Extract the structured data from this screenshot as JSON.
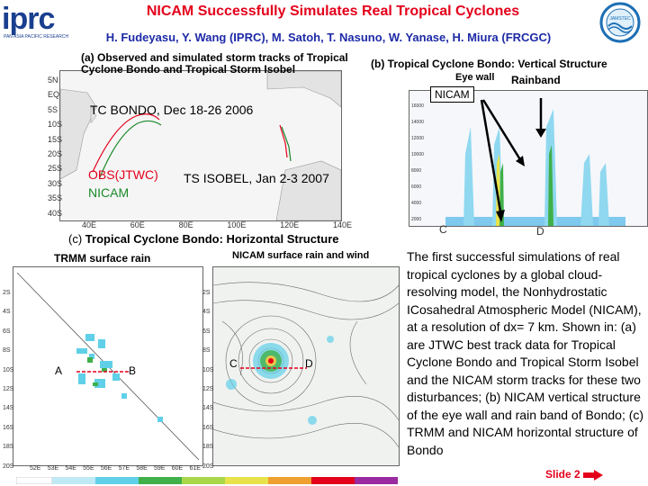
{
  "header": {
    "logo_text": "iprc",
    "logo_subtitle": "PAN ASIA PACIFIC RESEARCH",
    "title": "NICAM Successfully Simulates Real Tropical Cyclones",
    "authors": "H. Fudeyasu, Y. Wang (IPRC), M. Satoh, T. Nasuno,  W. Yanase, H. Miura (FRCGC)",
    "seal_text": "JAMSTEC"
  },
  "panel_a": {
    "caption": "(a) Observed and simulated storm tracks of Tropical Cyclone Bondo and Tropical Storm Isobel",
    "label_bondo": "TC BONDO, Dec 18-26 2006",
    "label_isobel": "TS ISOBEL, Jan 2-3 2007",
    "legend_obs": "OBS(JTWC)",
    "legend_nicam": "NICAM",
    "y_ticks": [
      "5N",
      "EQ",
      "5S",
      "10S",
      "15S",
      "20S",
      "25S",
      "30S",
      "35S",
      "40S"
    ],
    "x_ticks": [
      "40E",
      "60E",
      "80E",
      "100E",
      "120E",
      "140E"
    ]
  },
  "panel_b": {
    "caption": "(b) Tropical Cyclone Bondo: Vertical Structure",
    "eye_wall": "Eye wall",
    "rainband": "Rainband",
    "model": "NICAM",
    "y_ticks": [
      "16000",
      "14000",
      "12000",
      "10000",
      "8000",
      "6000",
      "4000",
      "2000"
    ],
    "left_point": "C",
    "right_point": "D"
  },
  "panel_c": {
    "caption_prefix": "(c)",
    "caption": "Tropical Cyclone Bondo: Horizontal Structure",
    "trmm_title": "TRMM surface rain",
    "nicam_title": "NICAM surface rain and wind",
    "point_a": "A",
    "point_b": "B",
    "point_c": "C",
    "point_d": "D",
    "y_ticks": [
      "2S",
      "4S",
      "6S",
      "8S",
      "10S",
      "12S",
      "14S",
      "16S",
      "18S",
      "20S"
    ],
    "x_ticks": [
      "52E",
      "53E",
      "54E",
      "55E",
      "56E",
      "57E",
      "58E",
      "59E",
      "60E",
      "61E"
    ]
  },
  "description": "The first successful  simulations of real tropical cyclones by a global cloud-resolving model, the Nonhydrostatic ICosahedral Atmospheric Model (NICAM), at a resolution of dx= 7 km. Shown in: (a) are JTWC best track data for Tropical Cyclone Bondo and Tropical Storm Isobel and the NICAM storm tracks for these two disturbances; (b) NICAM vertical structure of the eye wall and rain band of Bondo; (c) TRMM and NICAM horizontal structure of Bondo",
  "footer": {
    "slide": "Slide 2"
  },
  "colors": {
    "title": "#e4001b",
    "authors": "#1d2aa6",
    "obs_track": "#e4001b",
    "nicam_track": "#1a8a2a",
    "rain_cyan": "#5fd0e8"
  }
}
